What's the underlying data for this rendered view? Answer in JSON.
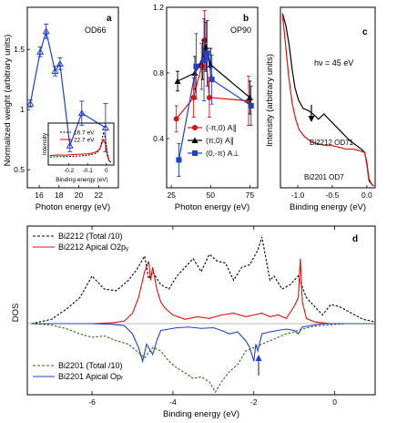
{
  "chart_data": [
    {
      "panel": "a",
      "type": "line",
      "annotation": "OD66",
      "xlabel": "Photon energy (eV)",
      "ylabel": "Normalized weight (arbitrary units)",
      "xlim": [
        14.8,
        24
      ],
      "ylim": [
        0.35,
        1.85
      ],
      "xticks": [
        16,
        18,
        20,
        22
      ],
      "yticks": [
        0.5,
        1.0,
        1.5
      ],
      "color": "#1f3fd0",
      "series": [
        {
          "x": [
            15.1,
            16.1,
            16.7,
            17.6,
            18.1,
            19.1,
            20.3,
            22.7
          ],
          "y": [
            1.05,
            1.48,
            1.65,
            1.32,
            1.38,
            0.7,
            0.97,
            0.85
          ],
          "err": [
            0.03,
            0.04,
            0.06,
            0.04,
            0.05,
            0.05,
            0.1,
            0.2
          ]
        }
      ],
      "inset": {
        "xlabel": "Binding energy (eV)",
        "ylabel": "Intensity",
        "xticks": [
          "-0.2",
          "-0.1",
          "0"
        ],
        "legend": [
          "16.7 eV",
          "22.7 eV"
        ],
        "x_range": [
          -0.3,
          0.03
        ],
        "series": [
          {
            "name": "16.7 eV",
            "color": "#000000",
            "dash": true,
            "x": [
              -0.3,
              -0.26,
              -0.22,
              -0.18,
              -0.14,
              -0.1,
              -0.07,
              -0.05,
              -0.035,
              -0.025,
              -0.015,
              -0.005,
              0.005,
              0.015,
              0.025
            ],
            "y": [
              0.18,
              0.19,
              0.19,
              0.2,
              0.21,
              0.23,
              0.26,
              0.3,
              0.4,
              0.62,
              0.9,
              0.72,
              0.3,
              0.08,
              0.02
            ]
          },
          {
            "name": "22.7 eV",
            "color": "#e00000",
            "dash": false,
            "x": [
              -0.3,
              -0.26,
              -0.22,
              -0.18,
              -0.14,
              -0.1,
              -0.07,
              -0.05,
              -0.035,
              -0.025,
              -0.015,
              -0.005,
              0.005,
              0.015,
              0.025
            ],
            "y": [
              0.22,
              0.24,
              0.23,
              0.25,
              0.26,
              0.27,
              0.3,
              0.34,
              0.42,
              0.56,
              0.68,
              0.55,
              0.22,
              0.06,
              0.02
            ]
          }
        ]
      }
    },
    {
      "panel": "b",
      "type": "line",
      "annotation": "OP90",
      "xlabel": "Photon energy (eV)",
      "xlim": [
        22,
        80
      ],
      "ylim": [
        0.1,
        1.2
      ],
      "xticks": [
        25,
        50,
        75
      ],
      "yticks": [
        0.4,
        0.8,
        1.2
      ],
      "series": [
        {
          "name": "(-π,0) A∥",
          "color": "#e01010",
          "marker": "circle",
          "x": [
            29,
            40,
            45,
            47,
            50,
            75
          ],
          "y": [
            0.52,
            0.65,
            0.84,
            1.0,
            0.65,
            0.63
          ],
          "err": [
            0.08,
            0.12,
            0.14,
            0.18,
            0.12,
            0.15
          ]
        },
        {
          "name": "(π,0) A∥",
          "color": "#000000",
          "marker": "triangle",
          "x": [
            29,
            40,
            45,
            47,
            50,
            75
          ],
          "y": [
            0.75,
            0.8,
            0.88,
            0.96,
            0.85,
            0.65
          ],
          "err": [
            0.06,
            0.1,
            0.12,
            0.15,
            0.1,
            0.1
          ]
        },
        {
          "name": "(0,-π) A⊥",
          "color": "#1f3fd0",
          "marker": "square",
          "x": [
            29,
            40,
            45,
            47,
            50,
            75
          ],
          "y": [
            0.27,
            0.84,
            0.88,
            0.92,
            0.76,
            0.6
          ],
          "err": [
            0.1,
            0.2,
            0.25,
            0.2,
            0.15,
            0.12
          ]
        }
      ]
    },
    {
      "panel": "c",
      "type": "line",
      "annotation": "hν = 45 eV",
      "xlabel": "Binding energy (eV)",
      "ylabel": "Intensity (arbitrary units)",
      "xlim": [
        -1.25,
        0.12
      ],
      "xticks": [
        -1.0,
        -0.5,
        0.0
      ],
      "labels": [
        "Bi2212 OD71",
        "Bi2201 OD7"
      ],
      "series": [
        {
          "name": "Bi2212 OD71",
          "color": "#000000",
          "x": [
            -1.22,
            -1.17,
            -1.12,
            -1.08,
            -1.04,
            -0.99,
            -0.92,
            -0.85,
            -0.78,
            -0.7,
            -0.62,
            -0.55,
            -0.45,
            -0.35,
            -0.25,
            -0.15,
            -0.08,
            -0.03,
            0.0,
            0.03,
            0.07,
            0.1
          ],
          "y": [
            0.99,
            0.92,
            0.8,
            0.67,
            0.57,
            0.5,
            0.45,
            0.44,
            0.42,
            0.39,
            0.42,
            0.39,
            0.35,
            0.31,
            0.27,
            0.24,
            0.22,
            0.2,
            0.14,
            0.05,
            0.02,
            0.01
          ]
        },
        {
          "name": "Bi2201 OD7",
          "color": "#e01010",
          "x": [
            -1.22,
            -1.18,
            -1.13,
            -1.08,
            -1.03,
            -0.98,
            -0.9,
            -0.8,
            -0.7,
            -0.6,
            -0.5,
            -0.4,
            -0.3,
            -0.2,
            -0.1,
            -0.03,
            0.0,
            0.03,
            0.07,
            0.1
          ],
          "y": [
            0.98,
            0.83,
            0.63,
            0.48,
            0.39,
            0.33,
            0.29,
            0.26,
            0.25,
            0.24,
            0.24,
            0.23,
            0.22,
            0.22,
            0.21,
            0.2,
            0.13,
            0.04,
            0.02,
            0.01
          ]
        }
      ]
    },
    {
      "panel": "d",
      "type": "line",
      "xlabel": "Binding energy (eV)",
      "ylabel": "DOS",
      "xlim": [
        -7.6,
        1.0
      ],
      "xticks": [
        -6,
        -4,
        -2,
        0
      ],
      "legend_top": [
        "Bi2212 (Total /10)",
        "Bi2212 Apical O2pᵧ"
      ],
      "legend_bottom": [
        "Bi2201 (Total /10)",
        "Bi2201 Apical Opᵣ"
      ],
      "series": [
        {
          "name": "Bi2212 (Total /10)",
          "color": "#000000",
          "dash": true,
          "side": "top",
          "x": [
            -7.5,
            -7.0,
            -6.6,
            -6.3,
            -6.0,
            -5.7,
            -5.4,
            -5.1,
            -4.9,
            -4.7,
            -4.6,
            -4.5,
            -4.3,
            -4.1,
            -3.9,
            -3.7,
            -3.5,
            -3.3,
            -3.1,
            -2.9,
            -2.7,
            -2.5,
            -2.3,
            -2.1,
            -1.9,
            -1.8,
            -1.7,
            -1.6,
            -1.5,
            -1.3,
            -1.1,
            -0.9,
            -0.7,
            -0.5,
            -0.3,
            -0.1,
            0.1,
            0.3,
            0.5,
            0.7,
            1.0
          ],
          "y": [
            0.0,
            0.05,
            0.18,
            0.3,
            0.55,
            0.4,
            0.38,
            0.5,
            0.62,
            0.78,
            0.52,
            0.6,
            0.45,
            0.4,
            0.55,
            0.65,
            0.75,
            0.6,
            0.8,
            0.72,
            0.7,
            0.5,
            0.65,
            0.68,
            0.85,
            1.0,
            0.75,
            0.5,
            0.55,
            0.4,
            0.45,
            0.55,
            0.3,
            0.2,
            0.1,
            0.22,
            0.2,
            0.15,
            0.1,
            0.05,
            0.02
          ]
        },
        {
          "name": "Bi2212 Apical O2pᵧ",
          "color": "#e01010",
          "dash": false,
          "side": "top",
          "x": [
            -7.5,
            -6.5,
            -6.0,
            -5.5,
            -5.2,
            -5.0,
            -4.85,
            -4.7,
            -4.6,
            -4.55,
            -4.5,
            -4.4,
            -4.3,
            -4.2,
            -4.0,
            -3.7,
            -3.4,
            -3.1,
            -2.8,
            -2.5,
            -2.2,
            -2.0,
            -1.8,
            -1.6,
            -1.4,
            -1.2,
            -1.0,
            -0.9,
            -0.85,
            -0.8,
            -0.7,
            -0.5,
            -0.3,
            -0.1,
            0.1,
            0.4,
            0.7,
            1.0
          ],
          "y": [
            0.0,
            0.0,
            0.0,
            0.01,
            0.03,
            0.12,
            0.3,
            0.6,
            0.72,
            0.5,
            0.65,
            0.4,
            0.25,
            0.18,
            0.1,
            0.05,
            0.08,
            0.06,
            0.1,
            0.12,
            0.08,
            0.1,
            0.12,
            0.08,
            0.1,
            0.06,
            0.2,
            0.3,
            0.75,
            0.25,
            0.06,
            0.02,
            0.01,
            0.0,
            0.0,
            0.0,
            0.0,
            0.0
          ]
        },
        {
          "name": "Bi2201 Apical Opᵣ",
          "color": "#1f3fd0",
          "dash": false,
          "side": "bottom",
          "x": [
            -7.5,
            -6.5,
            -6.0,
            -5.5,
            -5.2,
            -5.0,
            -4.85,
            -4.75,
            -4.65,
            -4.5,
            -4.4,
            -4.3,
            -4.1,
            -3.9,
            -3.6,
            -3.3,
            -3.0,
            -2.8,
            -2.6,
            -2.4,
            -2.2,
            -2.1,
            -2.0,
            -1.95,
            -1.9,
            -1.8,
            -1.6,
            -1.4,
            -1.2,
            -1.0,
            -0.9,
            -0.8,
            -0.6,
            -0.4,
            -0.2,
            0.0,
            0.4,
            1.0
          ],
          "y": [
            0.0,
            0.0,
            0.0,
            0.01,
            0.03,
            0.15,
            0.35,
            0.55,
            0.3,
            0.45,
            0.25,
            0.1,
            0.08,
            0.06,
            0.05,
            0.07,
            0.06,
            0.1,
            0.15,
            0.12,
            0.25,
            0.35,
            0.55,
            0.3,
            0.4,
            0.15,
            0.12,
            0.1,
            0.08,
            0.1,
            0.15,
            0.05,
            0.03,
            0.01,
            0.0,
            0.0,
            0.0,
            0.0
          ]
        },
        {
          "name": "Bi2201 (Total /10)",
          "color": "#2f6a1a",
          "dash": true,
          "side": "bottom",
          "x": [
            -7.5,
            -7.0,
            -6.6,
            -6.3,
            -6.0,
            -5.7,
            -5.4,
            -5.1,
            -4.9,
            -4.7,
            -4.5,
            -4.3,
            -4.1,
            -3.9,
            -3.7,
            -3.5,
            -3.3,
            -3.1,
            -2.95,
            -2.8,
            -2.6,
            -2.4,
            -2.2,
            -2.0,
            -1.8,
            -1.6,
            -1.4,
            -1.2,
            -1.0,
            -0.8,
            -0.6,
            -0.4,
            -0.2,
            0.0,
            0.3,
            0.6,
            1.0
          ],
          "y": [
            0.0,
            0.02,
            0.08,
            0.15,
            0.2,
            0.18,
            0.25,
            0.3,
            0.4,
            0.5,
            0.35,
            0.4,
            0.55,
            0.65,
            0.72,
            0.8,
            0.78,
            0.85,
            1.0,
            0.85,
            0.7,
            0.6,
            0.4,
            0.35,
            0.3,
            0.25,
            0.2,
            0.15,
            0.12,
            0.08,
            0.05,
            0.03,
            0.02,
            0.01,
            0.0,
            0.0,
            0.0
          ]
        }
      ]
    }
  ]
}
